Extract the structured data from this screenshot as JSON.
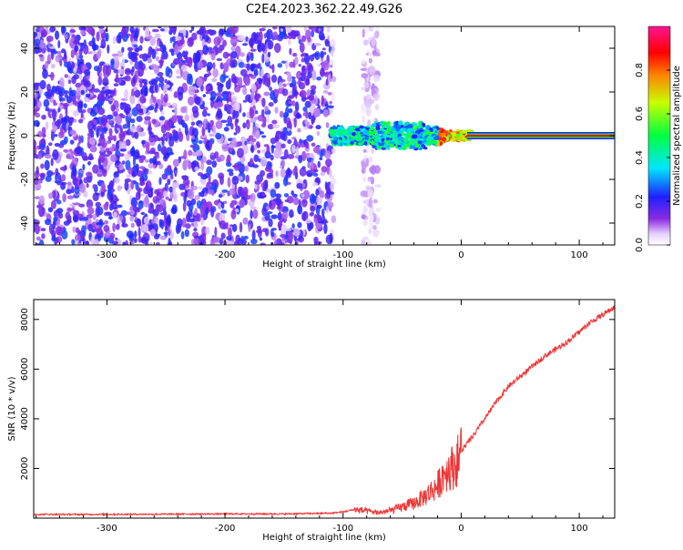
{
  "figure": {
    "title": "C2E4.2023.362.22.49.G26"
  },
  "chart_data": [
    {
      "type": "heatmap",
      "xlabel": "Height of straight line (km)",
      "ylabel": "Frequency (Hz)",
      "xlim": [
        -362,
        130
      ],
      "ylim": [
        -50,
        50
      ],
      "xticks": [
        -300,
        -200,
        -100,
        0,
        100
      ],
      "xtick_labels": [
        "-300",
        "-200",
        "-100",
        "0",
        "100"
      ],
      "yticks": [
        -40,
        -20,
        0,
        20,
        40
      ],
      "ytick_labels": [
        "-40",
        "-20",
        "0",
        "20",
        "40"
      ],
      "grid": false,
      "colorbar": {
        "label": "Normalized spectral amplitude",
        "range": [
          0,
          1
        ],
        "ticks": [
          0.0,
          0.2,
          0.4,
          0.6,
          0.8
        ],
        "tick_labels": [
          "0.0",
          "0.2",
          "0.4",
          "0.6",
          "0.8"
        ],
        "colormap": "rainbow (white-violet-blue-cyan-green-yellow-red-magenta)"
      },
      "features": {
        "noise_region": {
          "x_range": [
            -362,
            -110
          ],
          "freq_range": [
            -50,
            50
          ],
          "amplitude": [
            0.05,
            0.25
          ]
        },
        "signal_onset_km": -110,
        "carrier_frequency_hz": 0,
        "signal_spread_hz": {
          "at_-100km": 4,
          "at_-50km": 6,
          "at_0km": 2
        },
        "carrier_line_amplitude": 0.9,
        "carrier_line_x_range": [
          5,
          130
        ]
      }
    },
    {
      "type": "line",
      "xlabel": "Height of straight line (km)",
      "ylabel": "SNR (10 * v/v)",
      "xlim": [
        -362,
        130
      ],
      "ylim": [
        0,
        8800
      ],
      "xticks": [
        -300,
        -200,
        -100,
        0,
        100
      ],
      "xtick_labels": [
        "-300",
        "-200",
        "-100",
        "0",
        "100"
      ],
      "yticks": [
        2000,
        4000,
        6000,
        8000
      ],
      "ytick_labels": [
        "2000",
        "4000",
        "6000",
        "8000"
      ],
      "grid": false,
      "series": [
        {
          "color": "#ee3333",
          "x": [
            -362,
            -300,
            -250,
            -200,
            -150,
            -110,
            -100,
            -90,
            -80,
            -70,
            -60,
            -50,
            -40,
            -30,
            -20,
            -15,
            -10,
            -5,
            0,
            10,
            20,
            30,
            40,
            50,
            60,
            70,
            80,
            90,
            100,
            110,
            120,
            130
          ],
          "y": [
            150,
            150,
            160,
            170,
            170,
            200,
            250,
            350,
            280,
            220,
            300,
            450,
            600,
            900,
            1300,
            1800,
            2000,
            2100,
            2700,
            3300,
            4000,
            4700,
            5300,
            5700,
            6100,
            6500,
            6800,
            7100,
            7500,
            7900,
            8200,
            8500
          ]
        }
      ]
    }
  ]
}
